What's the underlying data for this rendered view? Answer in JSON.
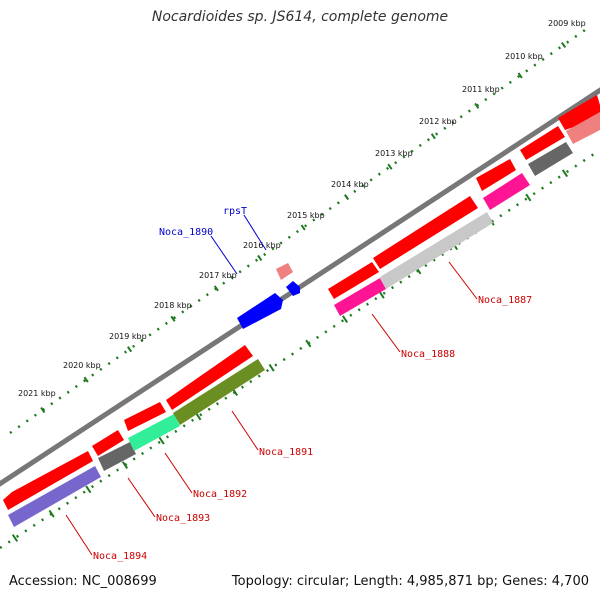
{
  "title": "Nocardioides sp. JS614, complete genome",
  "footer": {
    "accession": "Accession: NC_008699",
    "summary": "Topology: circular; Length: 4,985,871 bp; Genes: 4,700"
  },
  "kbp_ticks": [
    "2009 kbp",
    "2010 kbp",
    "2011 kbp",
    "2012 kbp",
    "2013 kbp",
    "2014 kbp",
    "2015 kbp",
    "2016 kbp",
    "2017 kbp",
    "2018 kbp",
    "2019 kbp",
    "2020 kbp",
    "2021 kbp"
  ],
  "gene_labels": [
    {
      "text": "Noca_1887",
      "color": "#cc0000"
    },
    {
      "text": "Noca_1888",
      "color": "#cc0000"
    },
    {
      "text": "Noca_1891",
      "color": "#cc0000"
    },
    {
      "text": "Noca_1892",
      "color": "#cc0000"
    },
    {
      "text": "Noca_1893",
      "color": "#cc0000"
    },
    {
      "text": "Noca_1894",
      "color": "#cc0000"
    },
    {
      "text": "Noca_1890",
      "color": "#0000cc"
    },
    {
      "text": "rpsT",
      "color": "#0000cc"
    }
  ],
  "colors": {
    "backbone": "#808080",
    "tick": "#1f7a1f",
    "cds": "#ff0000",
    "blue_gene": "#0000ff"
  }
}
